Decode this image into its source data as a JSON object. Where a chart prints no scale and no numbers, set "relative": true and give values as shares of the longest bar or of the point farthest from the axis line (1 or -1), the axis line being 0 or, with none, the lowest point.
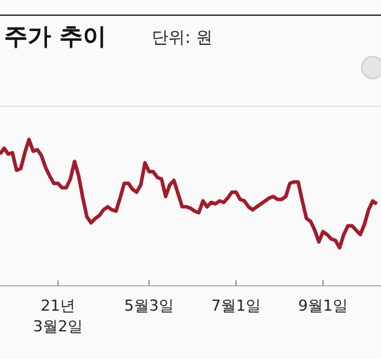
{
  "chart_data": {
    "type": "line",
    "title": "주가 추이",
    "subtitle": "단위: 원",
    "relative": true,
    "grid": false,
    "marker": "none",
    "categories": [
      null,
      null,
      null,
      null,
      null,
      null,
      null,
      null,
      null,
      null,
      null,
      null,
      null,
      null,
      "21년\n3월2일",
      null,
      null,
      null,
      null,
      null,
      null,
      null,
      null,
      null,
      null,
      null,
      null,
      null,
      null,
      null,
      null,
      null,
      null,
      null,
      null,
      null,
      "5월3일",
      null,
      null,
      null,
      null,
      null,
      null,
      null,
      null,
      null,
      null,
      null,
      null,
      null,
      null,
      null,
      null,
      null,
      null,
      null,
      null,
      "7월1일",
      null,
      null,
      null,
      null,
      null,
      null,
      null,
      null,
      null,
      null,
      null,
      null,
      null,
      null,
      null,
      null,
      null,
      null,
      null,
      null,
      "9월1일",
      null,
      null,
      null,
      null,
      null,
      null,
      null,
      null,
      null,
      null,
      null,
      null,
      null
    ],
    "series": [
      {
        "color": "#a01c2c",
        "values": [
          0.9,
          0.94,
          0.9,
          0.91,
          0.79,
          0.8,
          0.91,
          1,
          0.92,
          0.93,
          0.89,
          0.81,
          0.75,
          0.7,
          0.7,
          0.67,
          0.67,
          0.73,
          0.85,
          0.75,
          0.6,
          0.47,
          0.43,
          0.46,
          0.48,
          0.52,
          0.54,
          0.52,
          0.51,
          0.6,
          0.7,
          0.7,
          0.66,
          0.64,
          0.69,
          0.84,
          0.78,
          0.78,
          0.74,
          0.73,
          0.61,
          0.69,
          0.72,
          0.63,
          0.54,
          0.54,
          0.53,
          0.51,
          0.5,
          0.58,
          0.54,
          0.57,
          0.56,
          0.58,
          0.57,
          0.6,
          0.64,
          0.64,
          0.59,
          0.58,
          0.54,
          0.52,
          0.54,
          0.56,
          0.58,
          0.6,
          0.61,
          0.59,
          0.59,
          0.61,
          0.7,
          0.71,
          0.71,
          0.58,
          0.46,
          0.44,
          0.38,
          0.3,
          0.37,
          0.35,
          0.32,
          0.31,
          0.26,
          0.35,
          0.41,
          0.41,
          0.38,
          0.35,
          0.42,
          0.52,
          0.58,
          0.56
        ]
      }
    ]
  }
}
